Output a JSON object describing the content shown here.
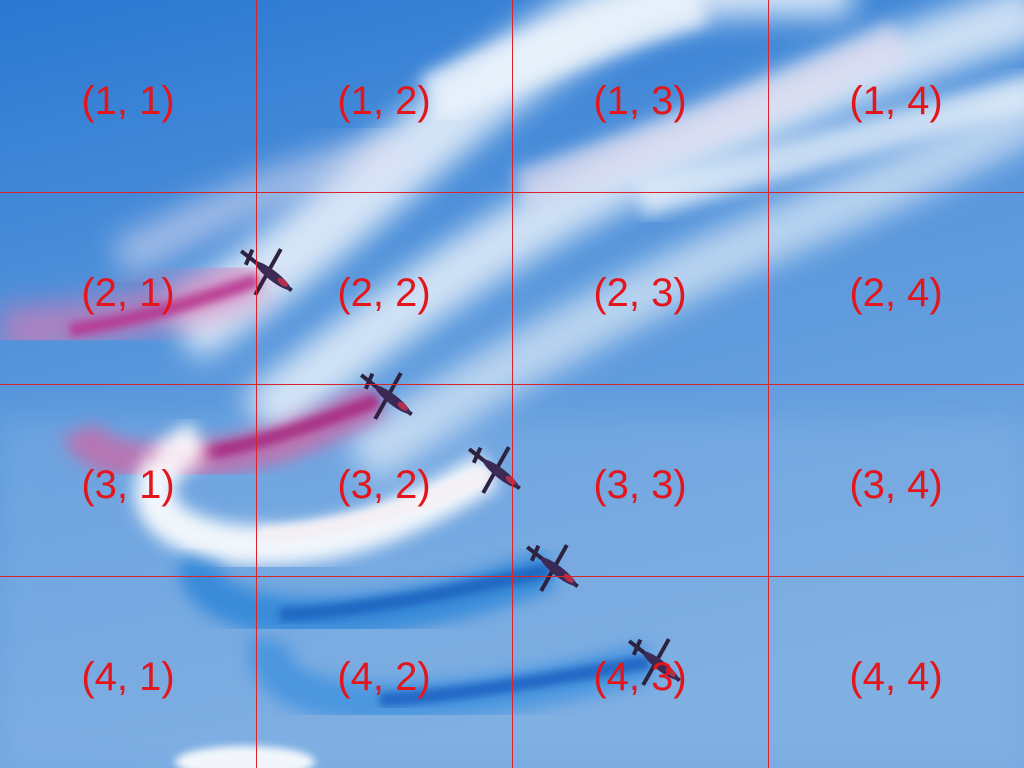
{
  "scene": {
    "colors": {
      "sky_top": "#2f7fd6",
      "sky_bottom": "#6fa3de",
      "smoke_white": "#ffffff",
      "smoke_red": "#b42e8e",
      "smoke_blue": "#1f74cf",
      "jet_body": "#3b2a55",
      "grid_line": "#d8242a",
      "grid_label": "#e4161c"
    },
    "subjects": [
      "jet",
      "jet",
      "jet",
      "jet",
      "jet"
    ]
  },
  "grid": {
    "rows": 4,
    "cols": 4,
    "labels": [
      [
        "(1, 1)",
        "(1, 2)",
        "(1, 3)",
        "(1, 4)"
      ],
      [
        "(2, 1)",
        "(2, 2)",
        "(2, 3)",
        "(2, 4)"
      ],
      [
        "(3, 1)",
        "(3, 2)",
        "(3, 3)",
        "(3, 4)"
      ],
      [
        "(4, 1)",
        "(4, 2)",
        "(4, 3)",
        "(4, 4)"
      ]
    ]
  }
}
